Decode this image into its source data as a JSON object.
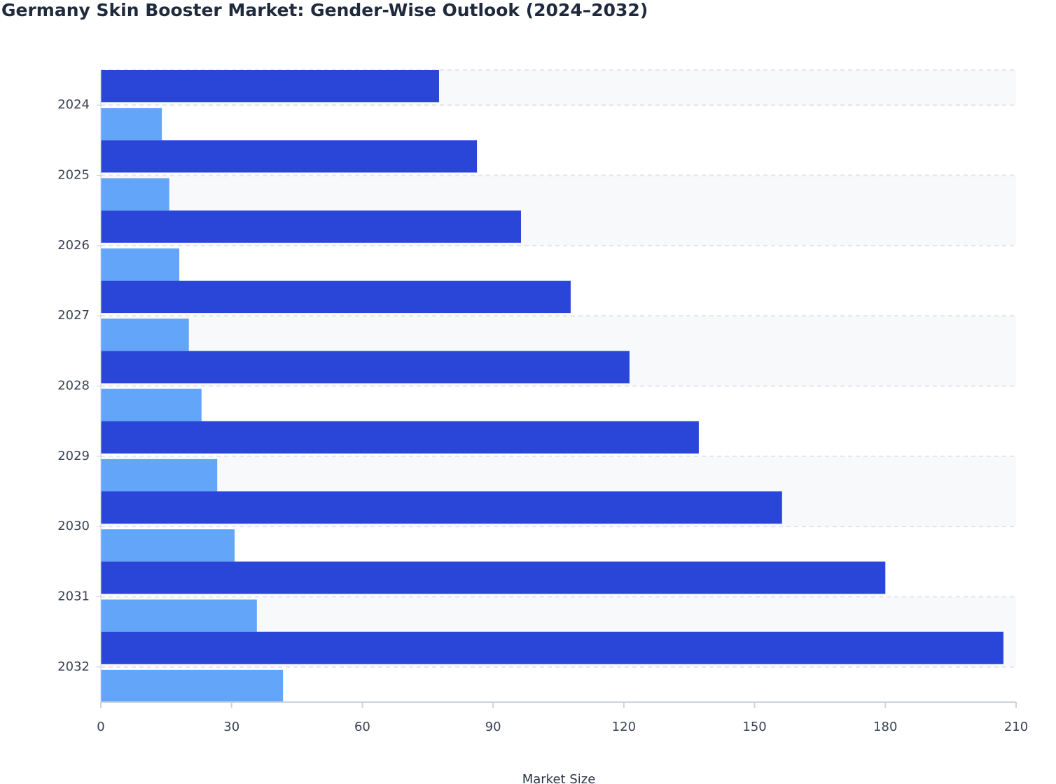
{
  "chart_data": {
    "type": "bar",
    "orientation": "horizontal",
    "title": "Germany Skin Booster Market: Gender-Wise Outlook (2024–2032)",
    "x_label": "Market Size",
    "categories": [
      "2024",
      "2025",
      "2026",
      "2027",
      "2028",
      "2029",
      "2030",
      "2031",
      "2032"
    ],
    "series": [
      {
        "color": "#2946d9",
        "values": [
          77.6,
          86.3,
          96.4,
          107.8,
          121.3,
          137.2,
          156.3,
          180.0,
          207.1
        ]
      },
      {
        "color": "#63a5f8",
        "values": [
          14.0,
          15.7,
          18.0,
          20.2,
          23.1,
          26.7,
          30.7,
          35.8,
          41.8
        ]
      }
    ],
    "xlim": [
      0,
      210
    ],
    "xticks": [
      0,
      30,
      60,
      90,
      120,
      150,
      180,
      210
    ],
    "grid": true
  }
}
